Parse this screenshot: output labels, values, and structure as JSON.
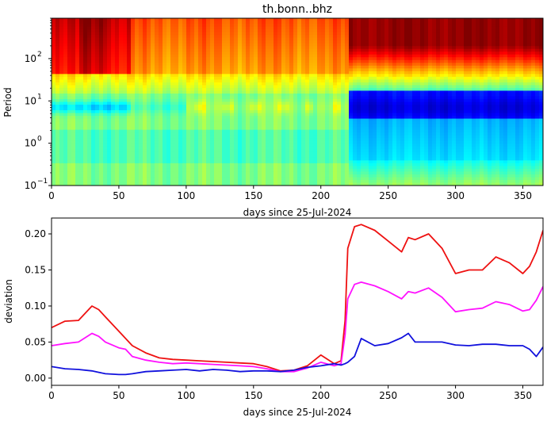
{
  "chart_data": [
    {
      "type": "heatmap",
      "title": "th.bonn..bhz",
      "xlabel": "days since 25-Jul-2024",
      "ylabel": "Period",
      "xlim": [
        0,
        365
      ],
      "ylim": [
        0.1,
        900
      ],
      "yscale": "log",
      "xticks": [
        "0",
        "50",
        "100",
        "150",
        "200",
        "250",
        "300",
        "350"
      ],
      "yticks": [
        {
          "value": 0.1,
          "base": "10",
          "exp": "−1"
        },
        {
          "value": 1,
          "base": "10",
          "exp": "0"
        },
        {
          "value": 10,
          "base": "10",
          "exp": "1"
        },
        {
          "value": 100,
          "base": "10",
          "exp": "2"
        }
      ],
      "colormap": "jet",
      "change_day": 220
    },
    {
      "type": "line",
      "xlabel": "days since 25-Jul-2024",
      "ylabel": "deviation",
      "xlim": [
        0,
        365
      ],
      "ylim": [
        -0.01,
        0.222
      ],
      "xticks": [
        "0",
        "50",
        "100",
        "150",
        "200",
        "250",
        "300",
        "350"
      ],
      "yticks": [
        "0.00",
        "0.05",
        "0.10",
        "0.15",
        "0.20"
      ],
      "x": [
        0,
        10,
        20,
        30,
        35,
        40,
        50,
        55,
        60,
        70,
        80,
        90,
        100,
        110,
        120,
        130,
        140,
        150,
        160,
        170,
        180,
        190,
        200,
        210,
        215,
        218,
        220,
        225,
        230,
        240,
        250,
        260,
        265,
        270,
        280,
        290,
        300,
        310,
        320,
        330,
        340,
        350,
        355,
        360,
        365
      ],
      "series": [
        {
          "color": "#ee1111",
          "values": [
            0.07,
            0.079,
            0.08,
            0.1,
            0.095,
            0.085,
            0.065,
            0.055,
            0.045,
            0.035,
            0.028,
            0.026,
            0.025,
            0.024,
            0.023,
            0.022,
            0.021,
            0.02,
            0.016,
            0.01,
            0.011,
            0.017,
            0.032,
            0.02,
            0.024,
            0.08,
            0.18,
            0.21,
            0.213,
            0.205,
            0.19,
            0.175,
            0.195,
            0.192,
            0.2,
            0.18,
            0.145,
            0.15,
            0.15,
            0.168,
            0.16,
            0.145,
            0.155,
            0.175,
            0.205
          ]
        },
        {
          "color": "#ff11ff",
          "values": [
            0.045,
            0.048,
            0.05,
            0.062,
            0.058,
            0.05,
            0.042,
            0.04,
            0.03,
            0.025,
            0.022,
            0.02,
            0.021,
            0.02,
            0.019,
            0.018,
            0.017,
            0.016,
            0.013,
            0.009,
            0.009,
            0.014,
            0.022,
            0.017,
            0.02,
            0.06,
            0.11,
            0.13,
            0.133,
            0.128,
            0.12,
            0.11,
            0.12,
            0.118,
            0.125,
            0.112,
            0.092,
            0.095,
            0.097,
            0.106,
            0.102,
            0.093,
            0.095,
            0.108,
            0.127
          ]
        },
        {
          "color": "#1111dd",
          "values": [
            0.016,
            0.013,
            0.012,
            0.01,
            0.008,
            0.006,
            0.005,
            0.005,
            0.006,
            0.009,
            0.01,
            0.011,
            0.012,
            0.01,
            0.012,
            0.011,
            0.009,
            0.01,
            0.01,
            0.009,
            0.011,
            0.015,
            0.017,
            0.02,
            0.018,
            0.02,
            0.022,
            0.03,
            0.055,
            0.045,
            0.048,
            0.056,
            0.062,
            0.05,
            0.05,
            0.05,
            0.046,
            0.045,
            0.047,
            0.047,
            0.045,
            0.045,
            0.04,
            0.03,
            0.043
          ]
        }
      ]
    }
  ]
}
